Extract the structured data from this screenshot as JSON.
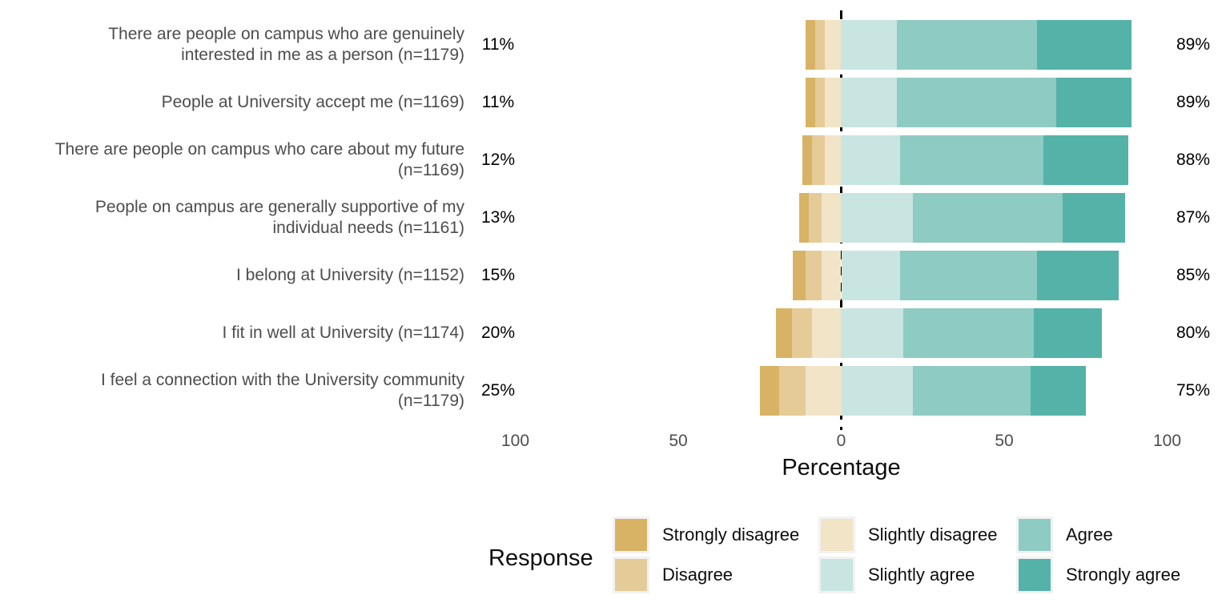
{
  "chart_data": {
    "type": "bar",
    "variant": "diverging_stacked_likert",
    "title": "",
    "xlabel": "Percentage",
    "ylabel": "",
    "grid": false,
    "xlim": [
      -110,
      110
    ],
    "x_axis_ticks": [
      {
        "value": -100,
        "label": "100"
      },
      {
        "value": -50,
        "label": "50"
      },
      {
        "value": 0,
        "label": "0"
      },
      {
        "value": 50,
        "label": "50"
      },
      {
        "value": 100,
        "label": "100"
      }
    ],
    "zero_baseline": {
      "style": "dashed",
      "color": "#000000"
    },
    "categories": [
      "Strongly disagree",
      "Disagree",
      "Slightly disagree",
      "Slightly agree",
      "Agree",
      "Strongly agree"
    ],
    "legend": {
      "title": "Response",
      "position": "bottom",
      "entries": [
        {
          "label": "Strongly disagree",
          "color": "#d8b365"
        },
        {
          "label": "Disagree",
          "color": "#e5cb97"
        },
        {
          "label": "Slightly disagree",
          "color": "#f2e4c6"
        },
        {
          "label": "Slightly agree",
          "color": "#c8e5e1"
        },
        {
          "label": "Agree",
          "color": "#8ecbc2"
        },
        {
          "label": "Strongly agree",
          "color": "#55b2a8"
        }
      ]
    },
    "rows": [
      {
        "label": "There are people on campus who are genuinely interested in me as a person (n=1179)",
        "disagree_total": "11%",
        "agree_total": "89%",
        "values": [
          3,
          3,
          5,
          17,
          43,
          29
        ]
      },
      {
        "label": "People at University accept me (n=1169)",
        "disagree_total": "11%",
        "agree_total": "89%",
        "values": [
          3,
          3,
          5,
          17,
          49,
          23
        ]
      },
      {
        "label": "There are people on campus who care about my future (n=1169)",
        "disagree_total": "12%",
        "agree_total": "88%",
        "values": [
          3,
          4,
          5,
          18,
          44,
          26
        ]
      },
      {
        "label": "People on campus are generally supportive of my individual needs (n=1161)",
        "disagree_total": "13%",
        "agree_total": "87%",
        "values": [
          3,
          4,
          6,
          22,
          46,
          19
        ]
      },
      {
        "label": "I belong at University (n=1152)",
        "disagree_total": "15%",
        "agree_total": "85%",
        "values": [
          4,
          5,
          6,
          18,
          42,
          25
        ]
      },
      {
        "label": "I fit in well at University (n=1174)",
        "disagree_total": "20%",
        "agree_total": "80%",
        "values": [
          5,
          6,
          9,
          19,
          40,
          21
        ]
      },
      {
        "label": "I feel a connection with the University community (n=1179)",
        "disagree_total": "25%",
        "agree_total": "75%",
        "values": [
          6,
          8,
          11,
          22,
          36,
          17
        ]
      }
    ]
  }
}
